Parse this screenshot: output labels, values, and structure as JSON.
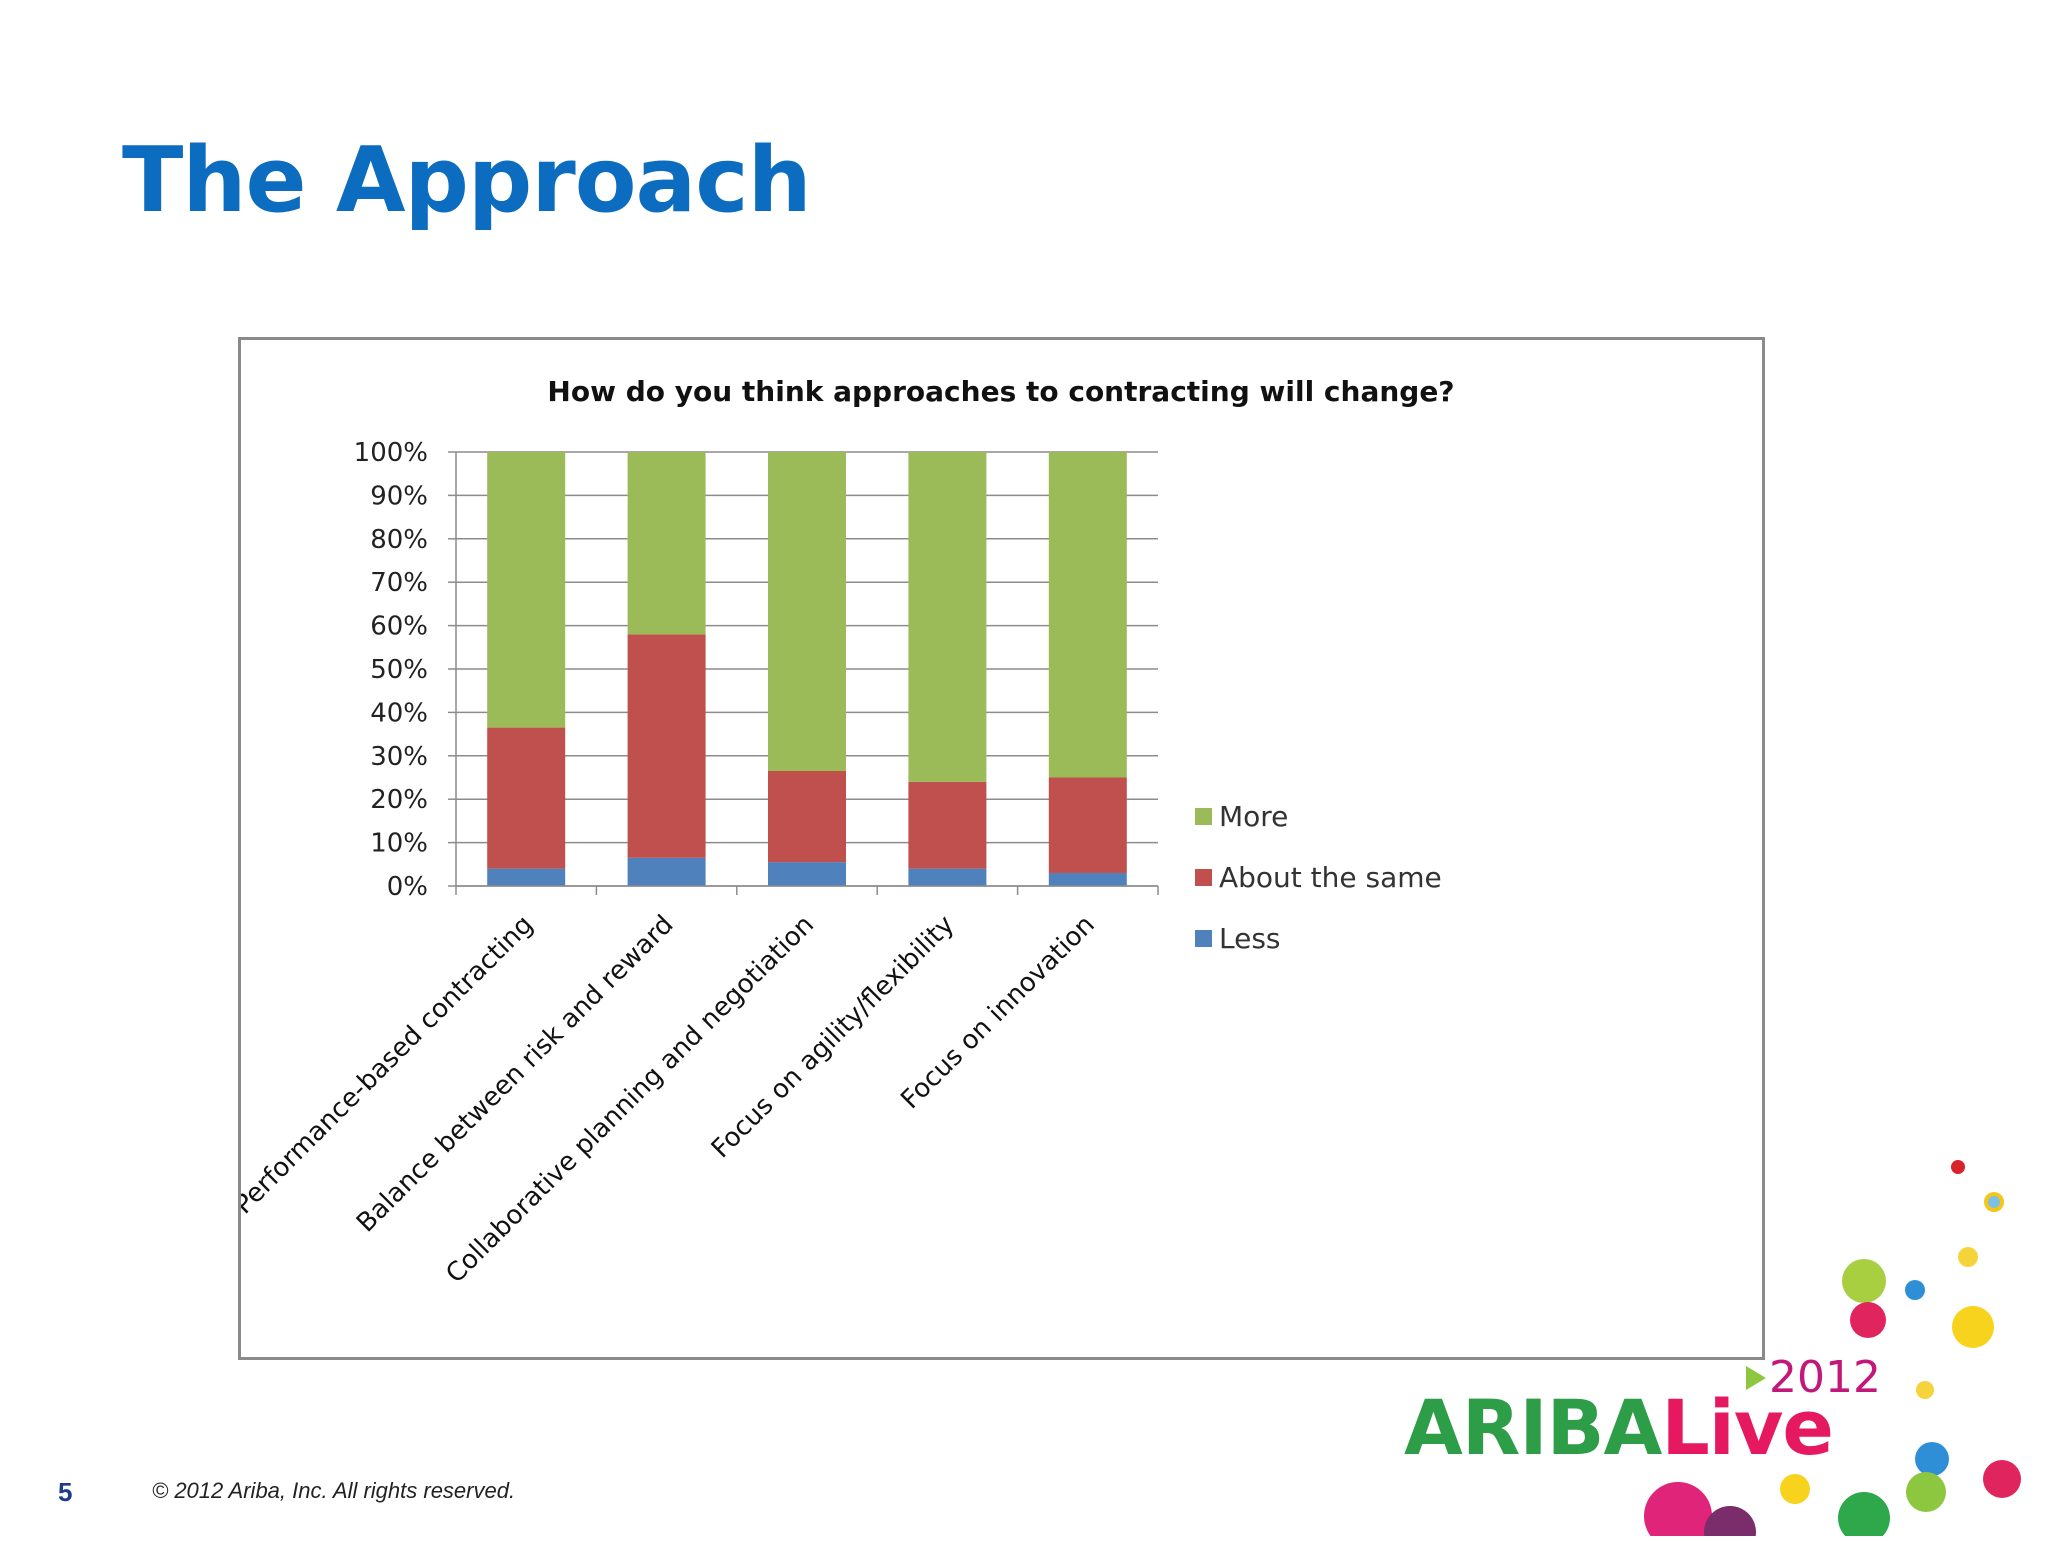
{
  "slide": {
    "title": "The Approach",
    "page_number": "5",
    "copyright": "© 2012 Ariba, Inc. All rights reserved."
  },
  "logo": {
    "year": "2012",
    "brand_part1": "ARIBA",
    "brand_part2": "Live"
  },
  "colors": {
    "title": "#0c6cbf",
    "more": "#9bbb59",
    "about_the_same": "#c0504d",
    "less": "#4f81bd"
  },
  "chart_data": {
    "type": "bar",
    "stacked": true,
    "title": "How do you think approaches to contracting will change?",
    "xlabel": "",
    "ylabel": "",
    "ylim": [
      0,
      100
    ],
    "y_ticks": [
      "0%",
      "10%",
      "20%",
      "30%",
      "40%",
      "50%",
      "60%",
      "70%",
      "80%",
      "90%",
      "100%"
    ],
    "categories": [
      "Performance-based contracting",
      "Balance between risk and reward",
      "Collaborative planning and negotiation",
      "Focus on agility/flexibility",
      "Focus on innovation"
    ],
    "series": [
      {
        "name": "Less",
        "color": "#4f81bd",
        "values": [
          4,
          6.5,
          5.5,
          4,
          3
        ]
      },
      {
        "name": "About the same",
        "color": "#c0504d",
        "values": [
          32.5,
          51.5,
          21,
          20,
          22
        ]
      },
      {
        "name": "More",
        "color": "#9bbb59",
        "values": [
          63.5,
          42,
          73.5,
          76,
          75
        ]
      }
    ],
    "legend": [
      "More",
      "About the same",
      "Less"
    ],
    "legend_position": "right",
    "grid": true
  }
}
